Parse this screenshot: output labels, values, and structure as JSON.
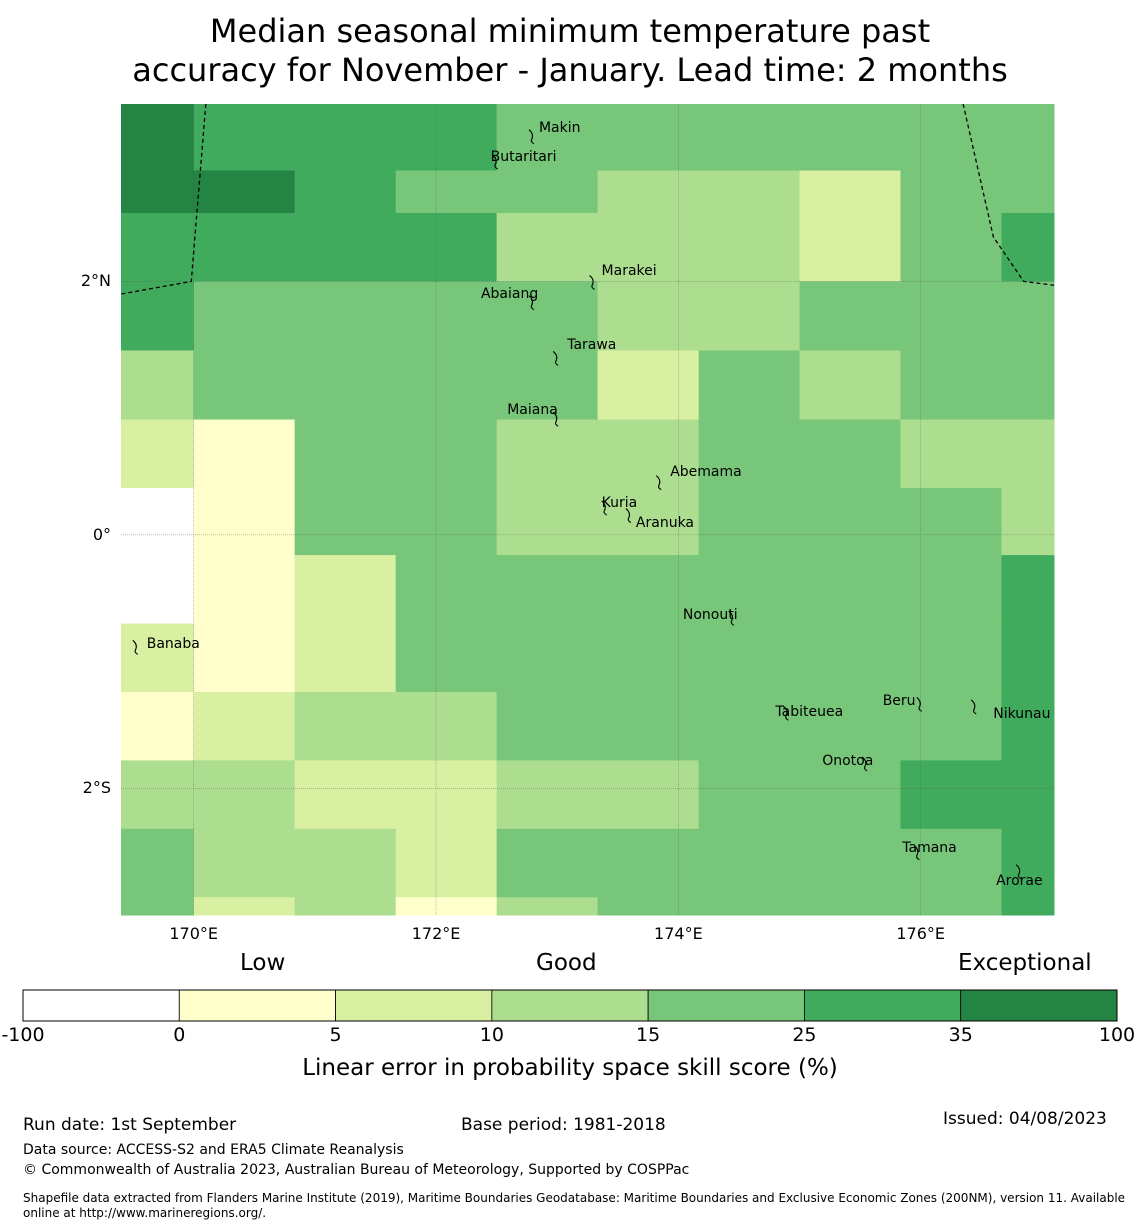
{
  "title_lines": [
    "Median seasonal minimum temperature past",
    "accuracy for November - January. Lead time: 2 months"
  ],
  "map": {
    "lon_range": [
      169.4,
      177.1
    ],
    "lat_range": [
      -3.0,
      3.4
    ],
    "lon_edges": [
      169.4,
      170.0,
      170.833,
      171.667,
      172.5,
      173.333,
      174.167,
      175.0,
      175.833,
      176.667,
      177.1
    ],
    "lat_edges": [
      3.4,
      2.875,
      2.54,
      2.0,
      1.455,
      0.91,
      0.37,
      -0.16,
      -0.7,
      -1.24,
      -1.78,
      -2.32,
      -2.86,
      -3.0
    ],
    "cell_classes": [
      [
        6,
        5,
        5,
        5,
        4,
        4,
        4,
        4,
        4,
        4
      ],
      [
        6,
        6,
        5,
        4,
        4,
        3,
        3,
        2,
        4,
        4
      ],
      [
        5,
        5,
        5,
        5,
        3,
        3,
        3,
        2,
        4,
        5
      ],
      [
        5,
        4,
        4,
        4,
        4,
        3,
        3,
        4,
        4,
        4
      ],
      [
        3,
        4,
        4,
        4,
        4,
        2,
        4,
        3,
        4,
        4
      ],
      [
        2,
        1,
        4,
        4,
        3,
        3,
        4,
        4,
        3,
        3
      ],
      [
        0,
        1,
        4,
        4,
        3,
        3,
        4,
        4,
        4,
        3
      ],
      [
        0,
        1,
        2,
        4,
        4,
        4,
        4,
        4,
        4,
        5
      ],
      [
        2,
        1,
        2,
        4,
        4,
        4,
        4,
        4,
        4,
        5
      ],
      [
        1,
        2,
        3,
        3,
        4,
        4,
        4,
        4,
        4,
        5
      ],
      [
        3,
        3,
        2,
        2,
        3,
        3,
        4,
        4,
        5,
        5
      ],
      [
        4,
        3,
        3,
        2,
        4,
        4,
        4,
        4,
        4,
        5
      ],
      [
        4,
        2,
        3,
        1,
        3,
        4,
        4,
        4,
        4,
        5
      ]
    ],
    "gridlines": {
      "lons": [
        170,
        172,
        174,
        176
      ],
      "lats": [
        2,
        0,
        -2
      ]
    },
    "x_ticks": [
      {
        "lon": 170,
        "label": "170°E"
      },
      {
        "lon": 172,
        "label": "172°E"
      },
      {
        "lon": 174,
        "label": "174°E"
      },
      {
        "lon": 176,
        "label": "176°E"
      }
    ],
    "y_ticks": [
      {
        "lat": 2,
        "label": "2°N"
      },
      {
        "lat": 0,
        "label": "0°"
      },
      {
        "lat": -2,
        "label": "2°S"
      }
    ],
    "boundary_west": [
      [
        170.1,
        3.4
      ],
      [
        169.98,
        2.0
      ],
      [
        169.4,
        1.9
      ]
    ],
    "boundary_east": [
      [
        176.35,
        3.4
      ],
      [
        176.6,
        2.35
      ],
      [
        176.85,
        2.0
      ],
      [
        177.1,
        1.97
      ]
    ],
    "places": [
      {
        "name": "Makin",
        "lon": 172.8,
        "lat": 3.15
      },
      {
        "name": "Butaritari",
        "lon": 172.5,
        "lat": 2.95
      },
      {
        "name": "Marakei",
        "lon": 173.3,
        "lat": 2.0
      },
      {
        "name": "Abaiang",
        "lon": 172.8,
        "lat": 1.84
      },
      {
        "name": "Tarawa",
        "lon": 173.0,
        "lat": 1.4
      },
      {
        "name": "Maiana",
        "lon": 173.0,
        "lat": 0.92
      },
      {
        "name": "Abemama",
        "lon": 173.85,
        "lat": 0.42
      },
      {
        "name": "Kuria",
        "lon": 173.4,
        "lat": 0.22
      },
      {
        "name": "Aranuka",
        "lon": 173.6,
        "lat": 0.16
      },
      {
        "name": "Nonouti",
        "lon": 174.45,
        "lat": -0.65
      },
      {
        "name": "Banaba",
        "lon": 169.53,
        "lat": -0.88
      },
      {
        "name": "Tabiteuea",
        "lon": 174.9,
        "lat": -1.4
      },
      {
        "name": "Beru",
        "lon": 176.0,
        "lat": -1.33
      },
      {
        "name": "Nikunau",
        "lon": 176.45,
        "lat": -1.35
      },
      {
        "name": "Onotoa",
        "lon": 175.55,
        "lat": -1.8
      },
      {
        "name": "Tamana",
        "lon": 175.98,
        "lat": -2.5
      },
      {
        "name": "Arorae",
        "lon": 176.82,
        "lat": -2.65
      }
    ]
  },
  "colorbar": {
    "categories": [
      {
        "label": "Low"
      },
      {
        "label": "Good"
      },
      {
        "label": "Exceptional"
      }
    ],
    "colors": [
      "#ffffff",
      "#ffffcc",
      "#d9f0a3",
      "#addd8e",
      "#78c679",
      "#41ab5d",
      "#238443"
    ],
    "boundaries": [
      "-100",
      "0",
      "5",
      "10",
      "15",
      "25",
      "35",
      "100"
    ],
    "label": "Linear error in probability space skill score (%)"
  },
  "footer": {
    "run_date": "Run date: 1st September",
    "base_period": "Base period: 1981-2018",
    "issued": "Issued: 04/08/2023",
    "data_source": "Data source: ACCESS-S2 and ERA5 Climate Reanalysis",
    "copyright": "© Commonwealth of Australia 2023, Australian Bureau of Meteorology, Supported by COSPPac",
    "shapefile": "Shapefile data extracted from Flanders Marine Institute (2019), Maritime Boundaries Geodatabase: Maritime Boundaries and Exclusive Economic Zones (200NM), version 11. Available online at http://www.marineregions.org/."
  }
}
